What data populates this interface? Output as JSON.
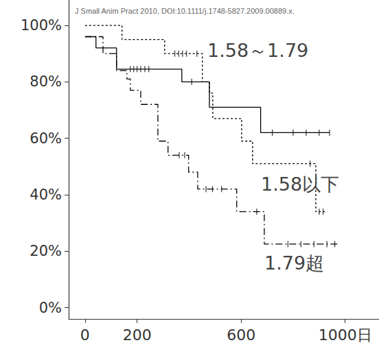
{
  "chart_data": {
    "type": "line",
    "title": "J Small Anim Pract 2010, DOI:10.1111/j.1748-5827.2009.00889.x.",
    "xlim": [
      -63,
      1130
    ],
    "xticks": [
      0,
      200,
      600,
      {
        "value": 1000,
        "label": "1000日"
      }
    ],
    "ylim": [
      -4,
      109
    ],
    "yticks": [
      {
        "value": 0,
        "label": "0%"
      },
      {
        "value": 20,
        "label": "20%"
      },
      {
        "value": 40,
        "label": "40%"
      },
      {
        "value": 60,
        "label": "60%"
      },
      {
        "value": 80,
        "label": "80%"
      },
      {
        "value": 100,
        "label": "100%"
      }
    ],
    "grid": false,
    "series": [
      {
        "name": "1.58～1.79",
        "color": "#000000",
        "line_style": "solid",
        "marker": "tick",
        "x": [
          0,
          42,
          121,
          372,
          478,
          675,
          940
        ],
        "values": [
          96,
          92,
          84.5,
          80,
          71,
          62,
          62
        ],
        "censored_x": [
          174,
          187,
          200,
          214,
          230,
          245,
          410,
          720,
          800,
          850,
          900,
          940
        ],
        "censored_values": [
          84.5,
          84.5,
          84.5,
          84.5,
          84.5,
          84.5,
          80,
          62,
          62,
          62,
          62,
          62
        ]
      },
      {
        "name": "1.58以下",
        "color": "#000000",
        "line_style": "dotted",
        "marker": "tick",
        "x": [
          0,
          142,
          306,
          451,
          478,
          491,
          602,
          644,
          887,
          930
        ],
        "values": [
          100,
          95,
          90,
          80,
          76,
          67,
          59,
          51,
          34,
          34
        ],
        "censored_x": [
          345,
          360,
          375,
          390,
          430,
          865,
          900,
          915
        ],
        "censored_values": [
          90,
          90,
          90,
          90,
          90,
          51,
          34,
          34
        ]
      },
      {
        "name": "1.79超",
        "color": "#000000",
        "line_style": "dashdot",
        "marker": "tick",
        "x": [
          0,
          69,
          121,
          161,
          174,
          214,
          280,
          319,
          398,
          433,
          583,
          689,
          971
        ],
        "values": [
          96,
          90,
          84,
          81,
          77,
          72,
          59,
          54,
          48,
          42,
          34,
          22.5,
          22.5
        ],
        "censored_x": [
          362,
          383,
          465,
          490,
          525,
          660,
          780,
          830,
          880,
          930,
          960
        ],
        "censored_values": [
          54,
          54,
          42,
          42,
          42,
          34,
          22.5,
          22.5,
          22.5,
          22.5,
          22.5
        ]
      }
    ]
  }
}
